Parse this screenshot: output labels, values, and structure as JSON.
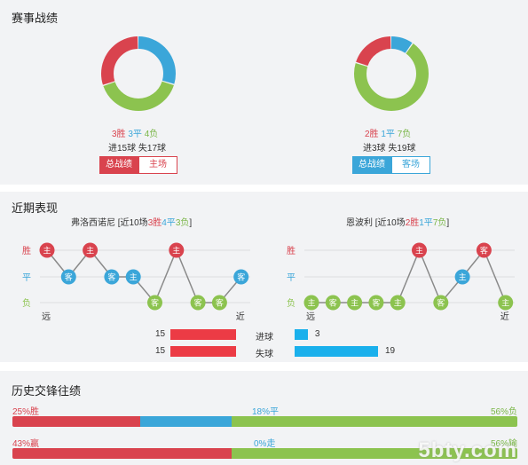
{
  "record": {
    "title": "赛事战绩",
    "left": {
      "win": "3胜",
      "draw": "3平",
      "loss": "4负",
      "goals": "进15球",
      "conceded": "失17球",
      "tab_active": "总战绩",
      "tab_other": "主场",
      "accent": "#d9434e",
      "donut": [
        {
          "value": 3,
          "color": "#3ba6d9"
        },
        {
          "value": 4,
          "color": "#8cc34f"
        },
        {
          "value": 3,
          "color": "#d9434e"
        }
      ]
    },
    "right": {
      "win": "2胜",
      "draw": "1平",
      "loss": "7负",
      "goals": "进3球",
      "conceded": "失19球",
      "tab_active": "总战绩",
      "tab_other": "客场",
      "accent": "#3ba6d9",
      "donut": [
        {
          "value": 1,
          "color": "#3ba6d9"
        },
        {
          "value": 7,
          "color": "#8cc34f"
        },
        {
          "value": 2,
          "color": "#d9434e"
        }
      ]
    }
  },
  "recent": {
    "title": "近期表现",
    "left": {
      "team": "弗洛西诺尼",
      "summary_prefix": "[近10场",
      "win": "3胜",
      "draw": "4平",
      "loss": "3负",
      "summary_suffix": "]",
      "row_labels": [
        "胜",
        "平",
        "负"
      ],
      "far": "远",
      "near": "近",
      "matches": [
        {
          "venue": "主",
          "result": "W"
        },
        {
          "venue": "客",
          "result": "D"
        },
        {
          "venue": "主",
          "result": "W"
        },
        {
          "venue": "客",
          "result": "D"
        },
        {
          "venue": "主",
          "result": "D"
        },
        {
          "venue": "客",
          "result": "L"
        },
        {
          "venue": "主",
          "result": "W"
        },
        {
          "venue": "客",
          "result": "L"
        },
        {
          "venue": "客",
          "result": "L"
        },
        {
          "venue": "客",
          "result": "D"
        }
      ]
    },
    "right": {
      "team": "恩波利",
      "summary_prefix": "[近10场",
      "win": "2胜",
      "draw": "1平",
      "loss": "7负",
      "summary_suffix": "]",
      "row_labels": [
        "胜",
        "平",
        "负"
      ],
      "far": "远",
      "near": "近",
      "matches": [
        {
          "venue": "主",
          "result": "L"
        },
        {
          "venue": "客",
          "result": "L"
        },
        {
          "venue": "主",
          "result": "L"
        },
        {
          "venue": "客",
          "result": "L"
        },
        {
          "venue": "主",
          "result": "L"
        },
        {
          "venue": "主",
          "result": "W"
        },
        {
          "venue": "客",
          "result": "L"
        },
        {
          "venue": "主",
          "result": "D"
        },
        {
          "venue": "客",
          "result": "W"
        },
        {
          "venue": "主",
          "result": "L"
        }
      ]
    },
    "goals_label": "进球",
    "conceded_label": "失球",
    "left_goals": "15",
    "left_conceded": "15",
    "right_goals": "3",
    "right_conceded": "19",
    "goals_values": {
      "left_goals": 15,
      "left_conceded": 15,
      "right_goals": 3,
      "right_conceded": 19,
      "max": 19
    }
  },
  "history": {
    "title": "历史交锋往绩",
    "row1": {
      "left": "25%胜",
      "mid": "18%平",
      "right": "56%负",
      "win": 25,
      "draw": 18,
      "loss": 56
    },
    "row2": {
      "left": "43%赢",
      "mid": "0%走",
      "right": "56%输",
      "win": 43,
      "draw": 0,
      "loss": 56
    }
  },
  "watermark": "5bty.com",
  "colors": {
    "win": "#d9434e",
    "draw": "#3ba6d9",
    "loss": "#8cc34f",
    "line": "#8a8a8a",
    "goal_bar": "#ec3b45",
    "conc_bar": "#1ab0ec"
  }
}
